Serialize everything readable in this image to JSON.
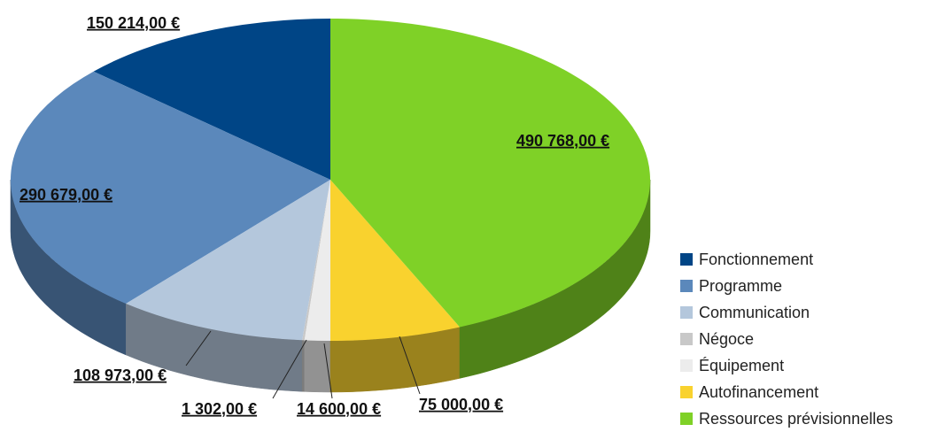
{
  "chart_data": {
    "type": "pie",
    "categories": [
      "Fonctionnement",
      "Programme",
      "Communication",
      "Négoce",
      "Équipement",
      "Autofinancement",
      "Ressources prévisionnelles"
    ],
    "values": [
      150214,
      290679,
      108973,
      1302,
      14600,
      75000,
      490768
    ],
    "value_labels": [
      "150 214,00 €",
      "290 679,00 €",
      "108 973,00 €",
      "1 302,00 €",
      "14 600,00 €",
      "75 000,00 €",
      "490 768,00 €"
    ],
    "colors": [
      "#004586",
      "#5b88bb",
      "#b4c7dc",
      "#c8c8c8",
      "#ececec",
      "#f9d22e",
      "#7fd127"
    ],
    "legend": "right"
  }
}
